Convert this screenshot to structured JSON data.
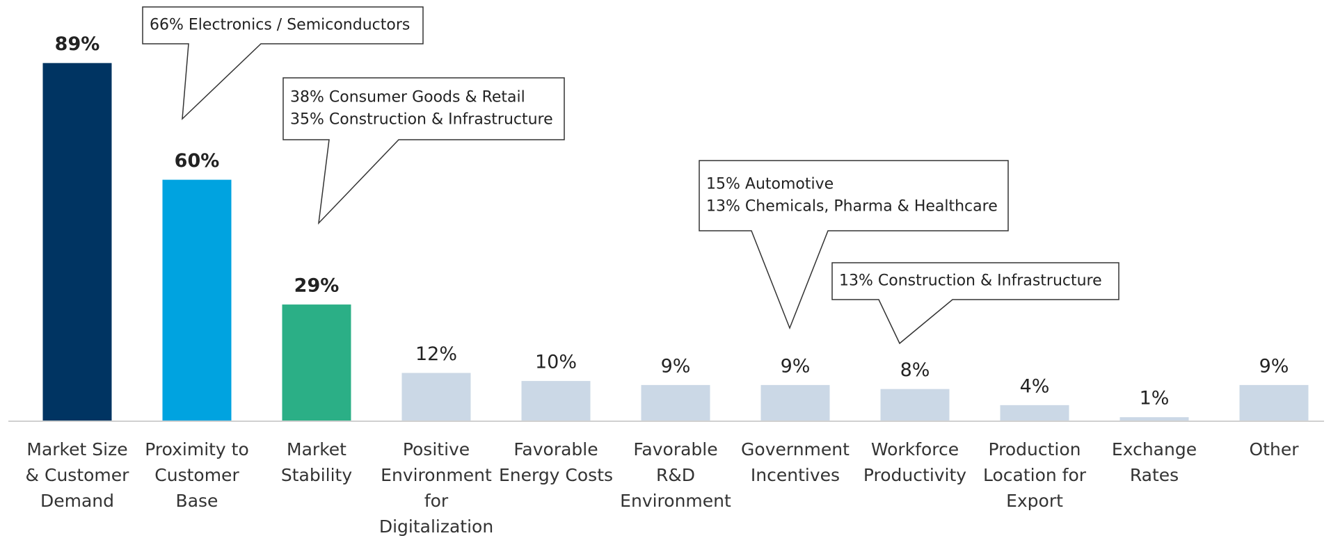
{
  "chart_data": {
    "type": "bar",
    "categories": [
      "Market Size & Customer Demand",
      "Proximity to Customer Base",
      "Market Stability",
      "Positive Environment for Digitalization",
      "Favorable Energy Costs",
      "Favorable R&D Environment",
      "Government Incentives",
      "Workforce Productivity",
      "Production Location for Export",
      "Exchange Rates",
      "Other"
    ],
    "values": [
      89,
      60,
      29,
      12,
      10,
      9,
      9,
      8,
      4,
      1,
      9
    ],
    "value_labels": [
      "89%",
      "60%",
      "29%",
      "12%",
      "10%",
      "9%",
      "9%",
      "8%",
      "4%",
      "1%",
      "9%"
    ],
    "colors": [
      "#003462",
      "#00a3e0",
      "#2baf86",
      "#cbd8e6",
      "#cbd8e6",
      "#cbd8e6",
      "#cbd8e6",
      "#cbd8e6",
      "#cbd8e6",
      "#cbd8e6",
      "#cbd8e6"
    ],
    "value_label_bold": [
      true,
      true,
      true,
      false,
      false,
      false,
      false,
      false,
      false,
      false,
      false
    ],
    "ylim": [
      0,
      100
    ],
    "annotations": [
      {
        "lines": [
          "66% Electronics / Semiconductors"
        ]
      },
      {
        "lines": [
          "38% Consumer Goods & Retail",
          "35% Construction & Infrastructure"
        ]
      },
      {
        "lines": [
          "15% Automotive",
          "13% Chemicals, Pharma & Healthcare"
        ]
      },
      {
        "lines": [
          "13% Construction & Infrastructure"
        ]
      }
    ]
  }
}
